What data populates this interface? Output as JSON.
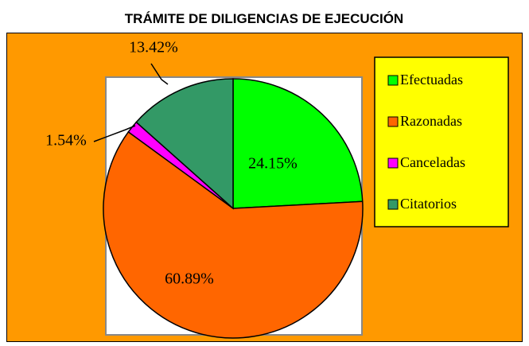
{
  "chart_data": {
    "type": "pie",
    "title": "TRÁMITE DE DILIGENCIAS DE EJECUCIÓN",
    "categories": [
      "Efectuadas",
      "Razonadas",
      "Canceladas",
      "Citatorios"
    ],
    "values": [
      24.15,
      60.89,
      1.54,
      13.42
    ],
    "value_labels": [
      "24.15%",
      "60.89%",
      "1.54%",
      "13.42%"
    ],
    "colors": [
      "#00FF00",
      "#FF6600",
      "#FF00FF",
      "#339966"
    ],
    "legend": "right"
  }
}
